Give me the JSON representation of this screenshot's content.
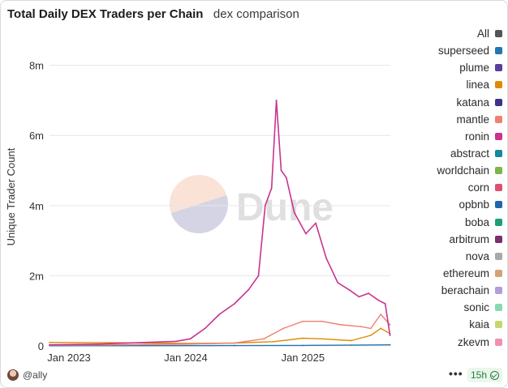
{
  "header": {
    "title": "Total Daily DEX Traders per Chain",
    "subtitle": "dex comparison"
  },
  "watermark": "Dune",
  "footer": {
    "author": "@ally",
    "more_label": "•••",
    "refresh_label": "15h"
  },
  "chart_data": {
    "type": "line",
    "title": "Total Daily DEX Traders per Chain",
    "xlabel": "",
    "ylabel": "Unique Trader Count",
    "xlim": [
      "2022-11-01",
      "2025-10-01"
    ],
    "ylim": [
      0,
      8500000
    ],
    "yticks": [
      0,
      2000000,
      4000000,
      6000000,
      8000000
    ],
    "ytick_labels": [
      "0",
      "2m",
      "4m",
      "6m",
      "8m"
    ],
    "xticks": [
      "2023-01-01",
      "2024-01-01",
      "2025-01-01"
    ],
    "xtick_labels": [
      "Jan 2023",
      "Jan 2024",
      "Jan 2025"
    ],
    "grid": true,
    "legend_position": "right",
    "legend": [
      {
        "name": "All",
        "color": "#555555"
      },
      {
        "name": "superseed",
        "color": "#1f77b4"
      },
      {
        "name": "plume",
        "color": "#5b3f9c"
      },
      {
        "name": "linea",
        "color": "#e08a00"
      },
      {
        "name": "katana",
        "color": "#3b3486"
      },
      {
        "name": "mantle",
        "color": "#f08070"
      },
      {
        "name": "ronin",
        "color": "#c8348f"
      },
      {
        "name": "abstract",
        "color": "#13899a"
      },
      {
        "name": "worldchain",
        "color": "#7ab648"
      },
      {
        "name": "corn",
        "color": "#e0506e"
      },
      {
        "name": "opbnb",
        "color": "#2166ac"
      },
      {
        "name": "boba",
        "color": "#1b9e77"
      },
      {
        "name": "arbitrum",
        "color": "#7b2d6e"
      },
      {
        "name": "nova",
        "color": "#a9a9a9"
      },
      {
        "name": "ethereum",
        "color": "#d4a373"
      },
      {
        "name": "berachain",
        "color": "#b39ddb"
      },
      {
        "name": "sonic",
        "color": "#88d8b0"
      },
      {
        "name": "kaia",
        "color": "#c5d86d"
      },
      {
        "name": "zkevm",
        "color": "#f48fb1"
      }
    ],
    "series": [
      {
        "name": "ronin",
        "color": "#c8348f",
        "x": [
          "2022-11-01",
          "2023-04-01",
          "2023-09-01",
          "2023-12-01",
          "2024-01-15",
          "2024-03-01",
          "2024-04-15",
          "2024-06-01",
          "2024-07-15",
          "2024-08-15",
          "2024-09-05",
          "2024-09-25",
          "2024-10-10",
          "2024-10-25",
          "2024-11-10",
          "2024-12-05",
          "2025-01-10",
          "2025-02-10",
          "2025-03-15",
          "2025-04-20",
          "2025-05-25",
          "2025-06-25",
          "2025-07-25",
          "2025-08-25",
          "2025-09-15",
          "2025-09-30"
        ],
        "values": [
          30000,
          50000,
          100000,
          130000,
          200000,
          500000,
          900000,
          1200000,
          1600000,
          2000000,
          4000000,
          4500000,
          7000000,
          5000000,
          4800000,
          3800000,
          3200000,
          3500000,
          2500000,
          1800000,
          1600000,
          1400000,
          1500000,
          1300000,
          1200000,
          300000
        ]
      },
      {
        "name": "mantle",
        "color": "#f08070",
        "x": [
          "2022-11-01",
          "2023-06-01",
          "2024-01-01",
          "2024-06-01",
          "2024-09-01",
          "2024-11-01",
          "2025-01-01",
          "2025-03-01",
          "2025-05-01",
          "2025-07-01",
          "2025-08-01",
          "2025-09-01",
          "2025-09-30"
        ],
        "values": [
          20000,
          30000,
          50000,
          80000,
          200000,
          500000,
          700000,
          700000,
          600000,
          550000,
          500000,
          900000,
          600000
        ]
      },
      {
        "name": "linea",
        "color": "#e08a00",
        "x": [
          "2022-11-01",
          "2023-06-01",
          "2024-01-01",
          "2024-06-01",
          "2024-10-01",
          "2025-01-01",
          "2025-03-01",
          "2025-06-01",
          "2025-08-01",
          "2025-09-01",
          "2025-09-30"
        ],
        "values": [
          100000,
          90000,
          70000,
          80000,
          120000,
          220000,
          200000,
          150000,
          300000,
          500000,
          350000
        ]
      },
      {
        "name": "superseed",
        "color": "#1f77b4",
        "x": [
          "2022-11-01",
          "2024-06-01",
          "2025-01-01",
          "2025-06-01",
          "2025-09-30"
        ],
        "values": [
          5000,
          10000,
          15000,
          20000,
          30000
        ]
      }
    ]
  }
}
